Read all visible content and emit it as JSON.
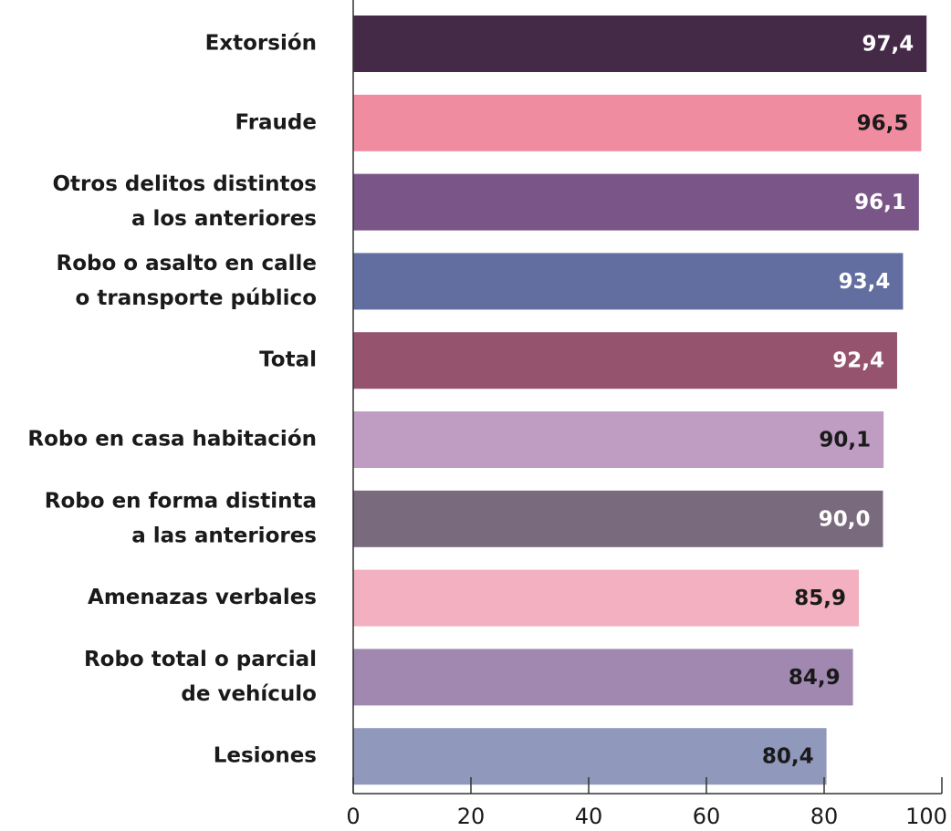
{
  "chart_data": {
    "type": "barh",
    "categories": [
      [
        "Extorsión"
      ],
      [
        "Fraude"
      ],
      [
        "Otros delitos distintos",
        "a los anteriores"
      ],
      [
        "Robo o asalto en calle",
        "o transporte público"
      ],
      [
        "Total"
      ],
      [
        "Robo en casa habitación"
      ],
      [
        "Robo en forma distinta",
        "a las anteriores"
      ],
      [
        "Amenazas verbales"
      ],
      [
        "Robo total o parcial",
        "de vehículo"
      ],
      [
        "Lesiones"
      ]
    ],
    "values": [
      97.4,
      96.5,
      96.1,
      93.4,
      92.4,
      90.1,
      90.0,
      85.9,
      84.9,
      80.4
    ],
    "value_labels": [
      "97,4",
      "96,5",
      "96,1",
      "93,4",
      "92,4",
      "90,1",
      "90,0",
      "85,9",
      "84,9",
      "80,4"
    ],
    "colors": [
      "#452a48",
      "#f08ca0",
      "#7a5588",
      "#626ea0",
      "#96536e",
      "#bf9cc2",
      "#7a6a7e",
      "#f2b0c0",
      "#a088b0",
      "#9098bc"
    ],
    "xlim": [
      0,
      100
    ],
    "xticks": [
      0,
      20,
      40,
      60,
      80,
      100
    ]
  }
}
